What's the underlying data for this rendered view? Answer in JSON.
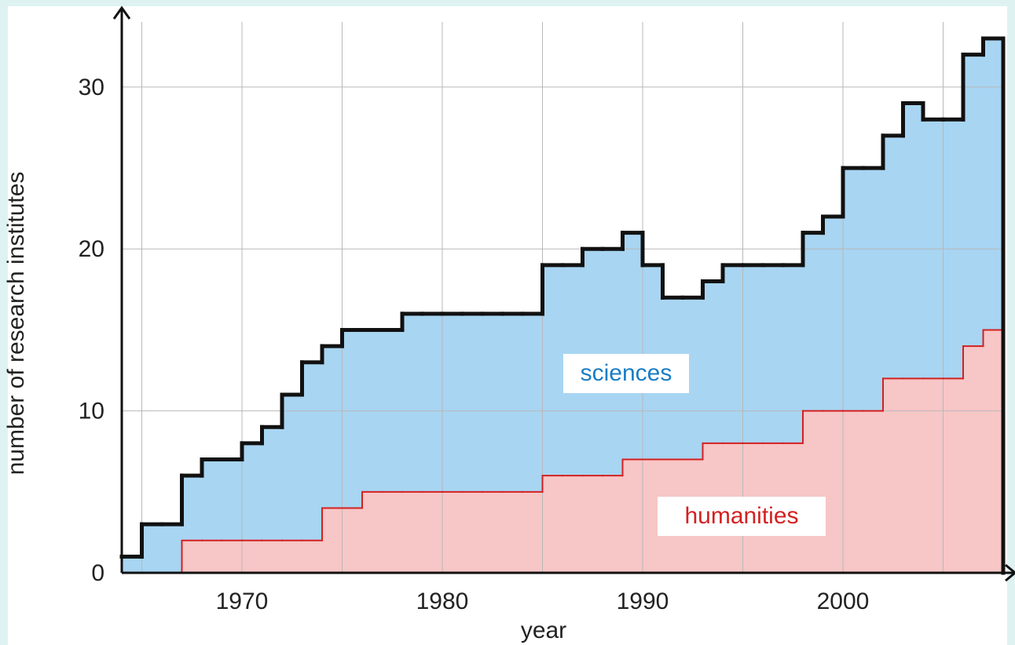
{
  "chart_data": {
    "type": "step-area-stacked",
    "xlabel": "year",
    "ylabel": "number of research institutes",
    "x": [
      1964,
      1965,
      1966,
      1967,
      1968,
      1969,
      1970,
      1971,
      1972,
      1973,
      1974,
      1975,
      1976,
      1977,
      1978,
      1979,
      1980,
      1981,
      1982,
      1983,
      1984,
      1985,
      1986,
      1987,
      1988,
      1989,
      1990,
      1991,
      1992,
      1993,
      1994,
      1995,
      1996,
      1997,
      1998,
      1999,
      2000,
      2001,
      2002,
      2003,
      2004,
      2005,
      2006,
      2007
    ],
    "series": [
      {
        "name": "humanities",
        "color": "#f7c6c6",
        "line_color": "#d42020",
        "values": [
          0,
          0,
          0,
          2,
          2,
          2,
          2,
          2,
          2,
          2,
          4,
          4,
          5,
          5,
          5,
          5,
          5,
          5,
          5,
          5,
          5,
          6,
          6,
          6,
          6,
          7,
          7,
          7,
          7,
          8,
          8,
          8,
          8,
          8,
          10,
          10,
          10,
          10,
          12,
          12,
          12,
          12,
          14,
          15
        ]
      },
      {
        "name": "sciences",
        "color": "#a8d5f2",
        "line_color": "#111111",
        "values": [
          1,
          3,
          3,
          4,
          5,
          5,
          6,
          7,
          9,
          11,
          10,
          11,
          10,
          10,
          11,
          11,
          11,
          11,
          11,
          11,
          11,
          13,
          13,
          14,
          14,
          14,
          12,
          10,
          10,
          10,
          11,
          11,
          11,
          11,
          11,
          12,
          15,
          15,
          15,
          17,
          16,
          16,
          18,
          18
        ]
      }
    ],
    "xlim": [
      1964,
      2008
    ],
    "ylim": [
      0,
      34.6
    ],
    "xticks": [
      1970,
      1980,
      1990,
      2000
    ],
    "xgrid": [
      1965,
      1970,
      1975,
      1980,
      1985,
      1990,
      1995,
      2000,
      2005
    ],
    "yticks": [
      0,
      10,
      20,
      30
    ],
    "grid": true
  }
}
